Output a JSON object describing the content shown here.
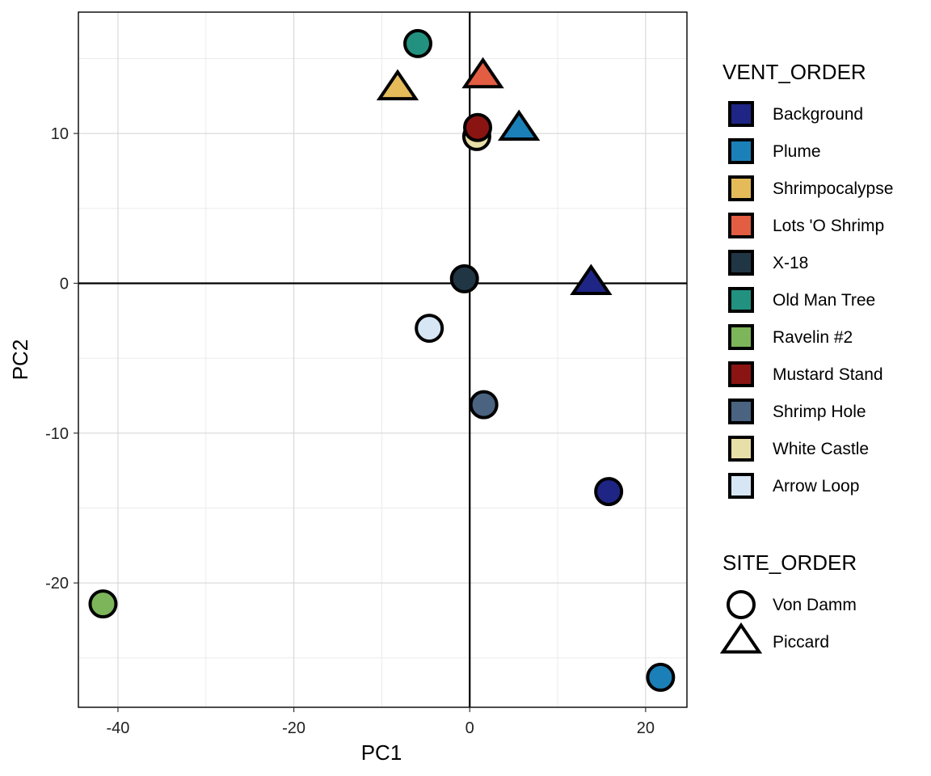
{
  "chart_data": {
    "type": "scatter",
    "xlabel": "PC1",
    "ylabel": "PC2",
    "xlim": [
      -44.5,
      24.7
    ],
    "ylim": [
      -28.3,
      18.1
    ],
    "x_ticks": [
      -40,
      -20,
      0,
      20
    ],
    "y_ticks": [
      -20,
      -10,
      0,
      10
    ],
    "x_tick_labels": [
      "-40",
      "-20",
      "0",
      "20"
    ],
    "y_tick_labels": [
      "-20",
      "-10",
      "0",
      "10"
    ],
    "grid": true,
    "reference_lines": {
      "x": 0,
      "y": 0
    },
    "legend_position": "right",
    "legends": {
      "fill": {
        "title": "VENT_ORDER",
        "entries": [
          {
            "label": "Background",
            "color": "#1f2584"
          },
          {
            "label": "Plume",
            "color": "#1b80b8"
          },
          {
            "label": "Shrimpocalypse",
            "color": "#e5bb5a"
          },
          {
            "label": "Lots 'O Shrimp",
            "color": "#e35d43"
          },
          {
            "label": "X-18",
            "color": "#213644"
          },
          {
            "label": "Old Man Tree",
            "color": "#229180"
          },
          {
            "label": "Ravelin #2",
            "color": "#7db55a"
          },
          {
            "label": "Mustard Stand",
            "color": "#8a1412"
          },
          {
            "label": "Shrimp Hole",
            "color": "#4a6381"
          },
          {
            "label": "White Castle",
            "color": "#e8dea8"
          },
          {
            "label": "Arrow Loop",
            "color": "#d7e6f5"
          }
        ]
      },
      "shape": {
        "title": "SITE_ORDER",
        "entries": [
          {
            "label": "Von Damm",
            "shape": "circle"
          },
          {
            "label": "Piccard",
            "shape": "triangle"
          }
        ]
      }
    },
    "points": [
      {
        "x": -5.9,
        "y": 16.0,
        "vent": "Old Man Tree",
        "site": "Von Damm"
      },
      {
        "x": -8.2,
        "y": 13.0,
        "vent": "Shrimpocalypse",
        "site": "Piccard"
      },
      {
        "x": 1.5,
        "y": 13.8,
        "vent": "Lots 'O Shrimp",
        "site": "Piccard"
      },
      {
        "x": 0.8,
        "y": 9.8,
        "vent": "White Castle",
        "site": "Von Damm"
      },
      {
        "x": 0.9,
        "y": 10.4,
        "vent": "Mustard Stand",
        "site": "Von Damm"
      },
      {
        "x": 5.6,
        "y": 10.3,
        "vent": "Plume",
        "site": "Piccard"
      },
      {
        "x": -0.6,
        "y": 0.3,
        "vent": "X-18",
        "site": "Von Damm"
      },
      {
        "x": 13.8,
        "y": 0.0,
        "vent": "Background",
        "site": "Piccard"
      },
      {
        "x": -4.6,
        "y": -3.0,
        "vent": "Arrow Loop",
        "site": "Von Damm"
      },
      {
        "x": 1.6,
        "y": -8.1,
        "vent": "Shrimp Hole",
        "site": "Von Damm"
      },
      {
        "x": 15.8,
        "y": -13.9,
        "vent": "Background",
        "site": "Von Damm"
      },
      {
        "x": -41.7,
        "y": -21.4,
        "vent": "Ravelin #2",
        "site": "Von Damm"
      },
      {
        "x": 21.7,
        "y": -26.3,
        "vent": "Plume",
        "site": "Von Damm"
      }
    ]
  }
}
